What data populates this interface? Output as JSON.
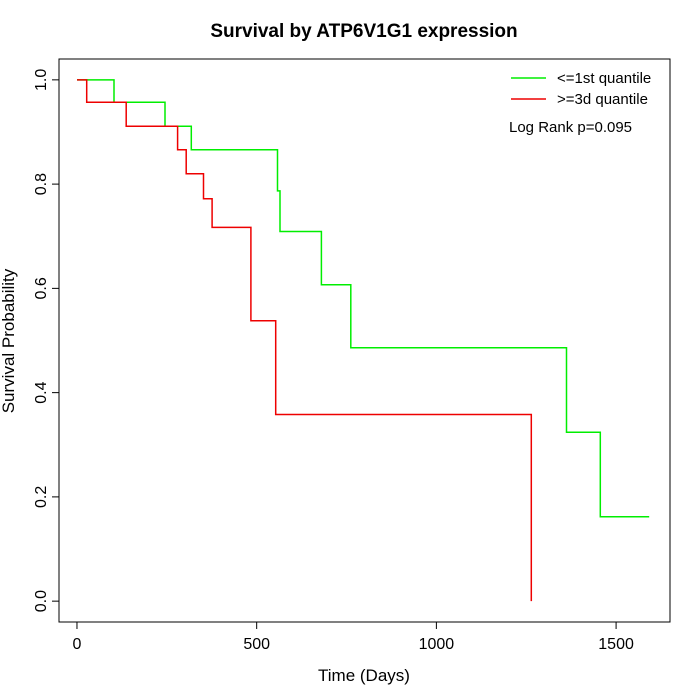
{
  "chart_data": {
    "type": "line",
    "title": "Survival by ATP6V1G1 expression",
    "xlabel": "Time (Days)",
    "ylabel": "Survival Probability",
    "xlim": [
      -50,
      1650
    ],
    "ylim": [
      -0.04,
      1.04
    ],
    "x_ticks": [
      0,
      500,
      1000,
      1500
    ],
    "y_ticks": [
      0.0,
      0.2,
      0.4,
      0.6,
      0.8,
      1.0
    ],
    "x_tick_labels": [
      "0",
      "500",
      "1000",
      "1500"
    ],
    "y_tick_labels": [
      "0.0",
      "0.2",
      "0.4",
      "0.6",
      "0.8",
      "1.0"
    ],
    "grid": false,
    "legend_position": "top-right",
    "annotation": "Log Rank p=0.095",
    "series": [
      {
        "name": "<=1st quantile",
        "color": "#00ee00",
        "step": [
          [
            0,
            1.0
          ],
          [
            103,
            1.0
          ],
          [
            103,
            0.957
          ],
          [
            245,
            0.957
          ],
          [
            245,
            0.911
          ],
          [
            318,
            0.911
          ],
          [
            318,
            0.866
          ],
          [
            558,
            0.866
          ],
          [
            558,
            0.787
          ],
          [
            565,
            0.787
          ],
          [
            565,
            0.709
          ],
          [
            680,
            0.709
          ],
          [
            680,
            0.607
          ],
          [
            762,
            0.607
          ],
          [
            762,
            0.486
          ],
          [
            1362,
            0.486
          ],
          [
            1362,
            0.324
          ],
          [
            1456,
            0.324
          ],
          [
            1456,
            0.162
          ],
          [
            1592,
            0.162
          ]
        ]
      },
      {
        "name": ">=3d quantile",
        "color": "#ee0000",
        "step": [
          [
            0,
            1.0
          ],
          [
            27,
            1.0
          ],
          [
            27,
            0.957
          ],
          [
            137,
            0.957
          ],
          [
            137,
            0.911
          ],
          [
            280,
            0.911
          ],
          [
            280,
            0.866
          ],
          [
            304,
            0.866
          ],
          [
            304,
            0.82
          ],
          [
            352,
            0.82
          ],
          [
            352,
            0.772
          ],
          [
            376,
            0.772
          ],
          [
            376,
            0.717
          ],
          [
            484,
            0.717
          ],
          [
            484,
            0.538
          ],
          [
            553,
            0.538
          ],
          [
            553,
            0.358
          ],
          [
            1264,
            0.358
          ],
          [
            1264,
            0.0
          ]
        ]
      }
    ]
  }
}
